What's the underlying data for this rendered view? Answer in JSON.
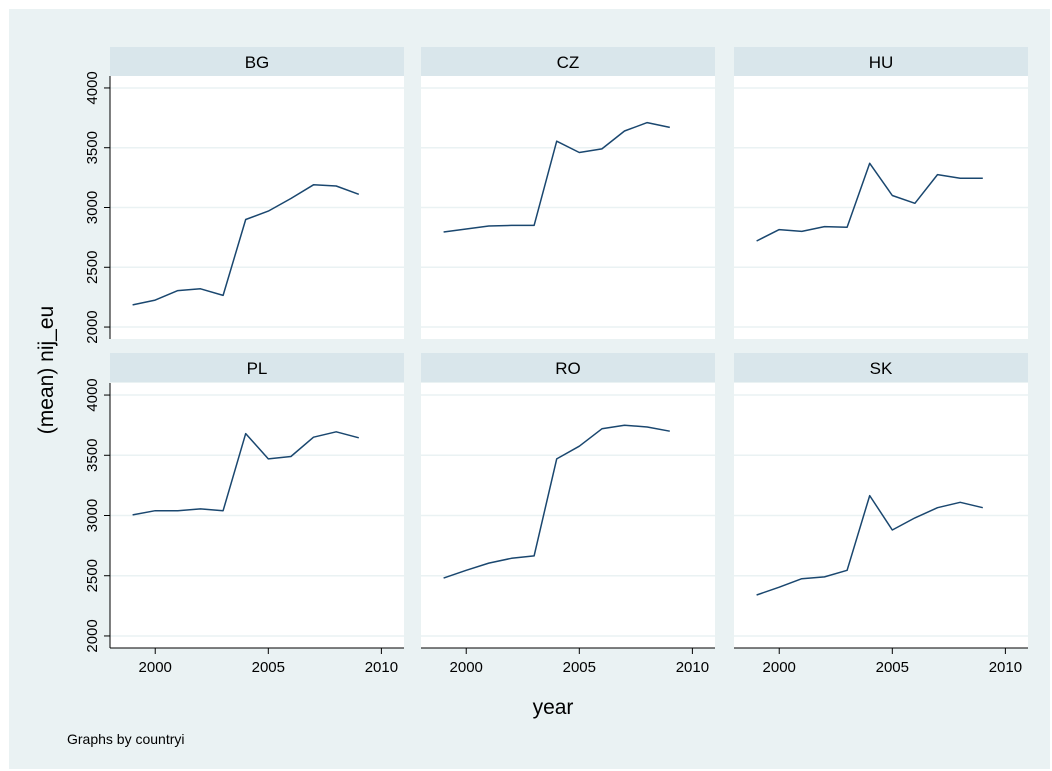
{
  "chart_data": {
    "type": "line",
    "xlabel": "year",
    "ylabel": "(mean) nij_eu",
    "note": "Graphs by countryi",
    "xlim": [
      1998,
      2011
    ],
    "ylim": [
      1900,
      4100
    ],
    "xticks": [
      2000,
      2005,
      2010
    ],
    "yticks": [
      2000,
      2500,
      3000,
      3500,
      4000
    ],
    "grid": true,
    "x": [
      1999,
      2000,
      2001,
      2002,
      2003,
      2004,
      2005,
      2006,
      2007,
      2008,
      2009
    ],
    "panels": [
      {
        "name": "BG",
        "values": [
          2185,
          2225,
          2305,
          2320,
          2265,
          2900,
          2970,
          3075,
          3190,
          3180,
          3110
        ]
      },
      {
        "name": "CZ",
        "values": [
          2795,
          2820,
          2845,
          2850,
          2850,
          3555,
          3460,
          3490,
          3640,
          3710,
          3670
        ]
      },
      {
        "name": "HU",
        "values": [
          2720,
          2815,
          2800,
          2840,
          2835,
          3370,
          3100,
          3035,
          3275,
          3245,
          3245
        ]
      },
      {
        "name": "PL",
        "values": [
          3005,
          3040,
          3040,
          3055,
          3040,
          3680,
          3470,
          3490,
          3650,
          3695,
          3645
        ]
      },
      {
        "name": "RO",
        "values": [
          2480,
          2545,
          2605,
          2645,
          2665,
          3470,
          3575,
          3720,
          3750,
          3735,
          3700
        ]
      },
      {
        "name": "SK",
        "values": [
          2340,
          2405,
          2475,
          2490,
          2545,
          3165,
          2880,
          2980,
          3065,
          3110,
          3065
        ]
      }
    ]
  },
  "colors": {
    "outer_background": "#eaf2f3",
    "plot_background": "#ffffff",
    "strip_background": "#d9e6eb",
    "grid": "#eaf2f3",
    "line": "#1a476f",
    "axis": "#000000"
  }
}
